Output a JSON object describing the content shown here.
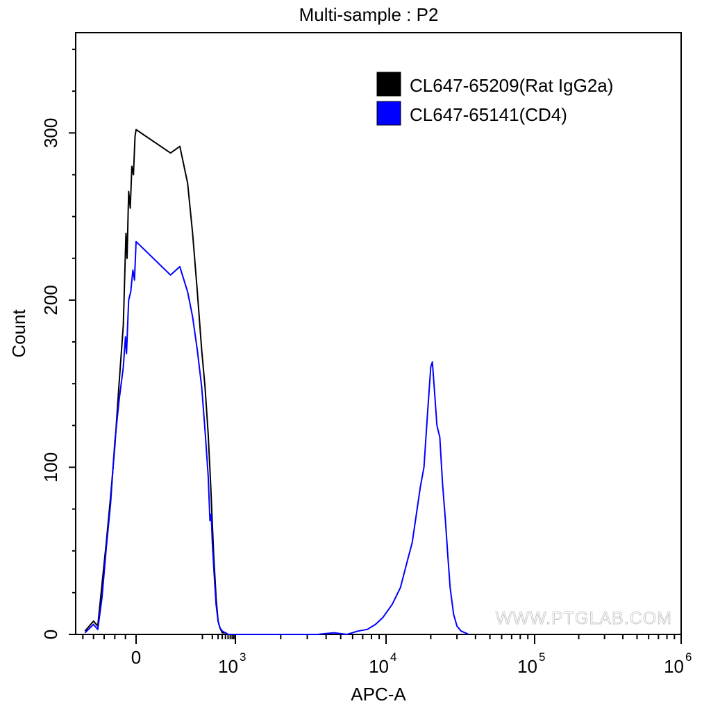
{
  "chart_data": {
    "type": "line",
    "title": "Multi-sample : P2",
    "xlabel": "APC-A",
    "ylabel": "Count",
    "x_scale": "biexponential",
    "ylim": [
      0,
      360
    ],
    "y_ticks": [
      0,
      100,
      200,
      300
    ],
    "x_ticks": [
      {
        "label": "0",
        "value": 0
      },
      {
        "base": "10",
        "exp": "3",
        "value": 1000
      },
      {
        "base": "10",
        "exp": "4",
        "value": 10000
      },
      {
        "base": "10",
        "exp": "5",
        "value": 100000
      },
      {
        "base": "10",
        "exp": "6",
        "value": 1000000
      }
    ],
    "grid": false,
    "legend_position": "top-right",
    "watermark": "WWW.PTGLAB.COM",
    "series": [
      {
        "name": "CL647-65209(Rat IgG2a)",
        "color": "#000000",
        "points": [
          [
            -480,
            2
          ],
          [
            -400,
            8
          ],
          [
            -360,
            5
          ],
          [
            -320,
            30
          ],
          [
            -280,
            55
          ],
          [
            -240,
            82
          ],
          [
            -200,
            112
          ],
          [
            -160,
            150
          ],
          [
            -120,
            185
          ],
          [
            -95,
            240
          ],
          [
            -85,
            225
          ],
          [
            -70,
            265
          ],
          [
            -55,
            255
          ],
          [
            -40,
            280
          ],
          [
            -25,
            275
          ],
          [
            -10,
            298
          ],
          [
            0,
            302
          ],
          [
            10,
            288
          ],
          [
            20,
            292
          ],
          [
            35,
            270
          ],
          [
            50,
            240
          ],
          [
            70,
            205
          ],
          [
            95,
            170
          ],
          [
            120,
            148
          ],
          [
            150,
            120
          ],
          [
            180,
            88
          ],
          [
            220,
            48
          ],
          [
            260,
            22
          ],
          [
            300,
            8
          ],
          [
            340,
            4
          ],
          [
            400,
            1
          ],
          [
            500,
            1
          ],
          [
            600,
            0
          ],
          [
            800,
            0
          ],
          [
            1200,
            0
          ],
          [
            2000,
            0
          ],
          [
            3000,
            0
          ]
        ]
      },
      {
        "name": "CL647-65141(CD4)",
        "color": "#0000ff",
        "points": [
          [
            -480,
            1
          ],
          [
            -400,
            6
          ],
          [
            -360,
            3
          ],
          [
            -320,
            22
          ],
          [
            -280,
            52
          ],
          [
            -240,
            78
          ],
          [
            -200,
            115
          ],
          [
            -160,
            140
          ],
          [
            -120,
            160
          ],
          [
            -100,
            178
          ],
          [
            -90,
            168
          ],
          [
            -70,
            200
          ],
          [
            -50,
            205
          ],
          [
            -30,
            218
          ],
          [
            -15,
            212
          ],
          [
            0,
            235
          ],
          [
            10,
            215
          ],
          [
            20,
            220
          ],
          [
            35,
            205
          ],
          [
            50,
            190
          ],
          [
            70,
            170
          ],
          [
            95,
            148
          ],
          [
            120,
            122
          ],
          [
            150,
            95
          ],
          [
            170,
            68
          ],
          [
            185,
            72
          ],
          [
            200,
            55
          ],
          [
            230,
            35
          ],
          [
            260,
            18
          ],
          [
            300,
            8
          ],
          [
            340,
            4
          ],
          [
            400,
            2
          ],
          [
            500,
            1
          ],
          [
            600,
            0
          ],
          [
            1000,
            0
          ],
          [
            2000,
            0
          ],
          [
            3500,
            0
          ],
          [
            4500,
            1
          ],
          [
            5500,
            0
          ],
          [
            6500,
            2
          ],
          [
            7500,
            3
          ],
          [
            8500,
            6
          ],
          [
            9500,
            10
          ],
          [
            11000,
            18
          ],
          [
            12500,
            28
          ],
          [
            14000,
            45
          ],
          [
            15000,
            55
          ],
          [
            16000,
            72
          ],
          [
            17000,
            88
          ],
          [
            18000,
            100
          ],
          [
            19000,
            132
          ],
          [
            20000,
            160
          ],
          [
            20500,
            163
          ],
          [
            21000,
            150
          ],
          [
            22000,
            125
          ],
          [
            23000,
            118
          ],
          [
            24000,
            90
          ],
          [
            25000,
            70
          ],
          [
            26000,
            48
          ],
          [
            27000,
            28
          ],
          [
            28500,
            12
          ],
          [
            30000,
            5
          ],
          [
            32000,
            2
          ],
          [
            34000,
            1
          ],
          [
            36000,
            0
          ]
        ]
      }
    ]
  }
}
